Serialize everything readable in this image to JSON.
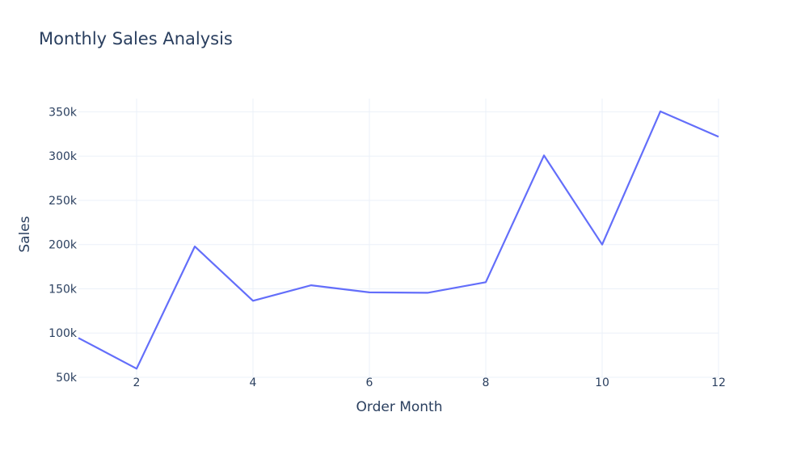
{
  "chart_data": {
    "type": "line",
    "title": "Monthly Sales Analysis",
    "xlabel": "Order Month",
    "ylabel": "Sales",
    "x": [
      1,
      2,
      3,
      4,
      5,
      6,
      7,
      8,
      9,
      10,
      11,
      12
    ],
    "series": [
      {
        "values": [
          94500,
          59800,
          197800,
          136500,
          154000,
          146000,
          145500,
          157500,
          300700,
          200000,
          350500,
          321800
        ]
      }
    ],
    "xlim": [
      1,
      12
    ],
    "ylim": [
      50000,
      365000
    ],
    "xticks": [
      2,
      4,
      6,
      8,
      10,
      12
    ],
    "xtick_labels": [
      "2",
      "4",
      "6",
      "8",
      "10",
      "12"
    ],
    "yticks": [
      50000,
      100000,
      150000,
      200000,
      250000,
      300000,
      350000
    ],
    "ytick_labels": [
      "50k",
      "100k",
      "150k",
      "200k",
      "250k",
      "300k",
      "350k"
    ],
    "grid": true,
    "line_color": "#636efa",
    "grid_color": "#ebf0f8"
  }
}
